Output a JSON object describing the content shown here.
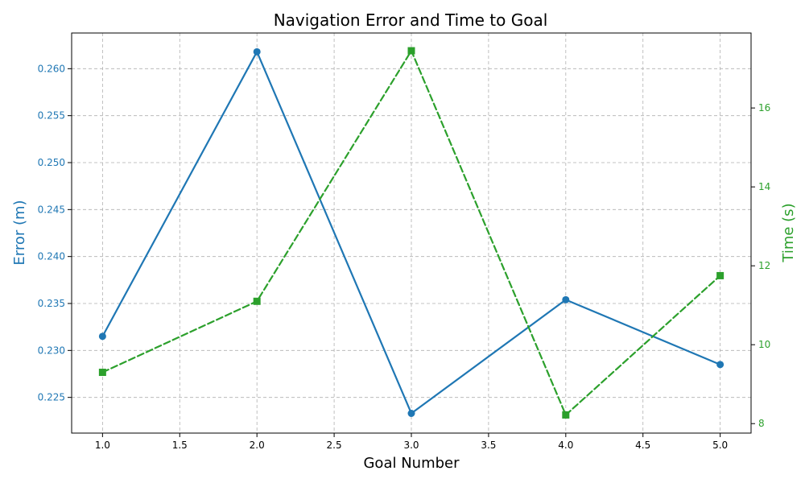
{
  "chart_data": {
    "type": "line",
    "title": "Navigation Error and Time to Goal",
    "xlabel": "Goal Number",
    "ylabel_left": "Error (m)",
    "ylabel_right": "Time (s)",
    "x": [
      1,
      2,
      3,
      4,
      5
    ],
    "xlim": [
      0.8,
      5.2
    ],
    "x_ticks": [
      1.0,
      1.5,
      2.0,
      2.5,
      3.0,
      3.5,
      4.0,
      4.5,
      5.0
    ],
    "x_tick_labels": [
      "1.0",
      "1.5",
      "2.0",
      "2.5",
      "3.0",
      "3.5",
      "4.0",
      "4.5",
      "5.0"
    ],
    "grid": true,
    "series": [
      {
        "axis": "left",
        "color": "#1f77b4",
        "marker": "circle",
        "line_style": "solid",
        "values": [
          0.2315,
          0.2618,
          0.2233,
          0.2354,
          0.2285
        ],
        "ylim": [
          0.2212,
          0.2638
        ],
        "y_ticks": [
          0.225,
          0.23,
          0.235,
          0.24,
          0.245,
          0.25,
          0.255,
          0.26
        ],
        "y_tick_labels": [
          "0.225",
          "0.230",
          "0.235",
          "0.240",
          "0.245",
          "0.250",
          "0.255",
          "0.260"
        ]
      },
      {
        "axis": "right",
        "color": "#2ca02c",
        "marker": "square",
        "line_style": "dashed",
        "values": [
          9.3,
          11.1,
          17.45,
          8.22,
          11.75
        ],
        "ylim": [
          7.76,
          17.9
        ],
        "y_ticks": [
          8,
          10,
          12,
          14,
          16
        ],
        "y_tick_labels": [
          "8",
          "10",
          "12",
          "14",
          "16"
        ]
      }
    ]
  }
}
